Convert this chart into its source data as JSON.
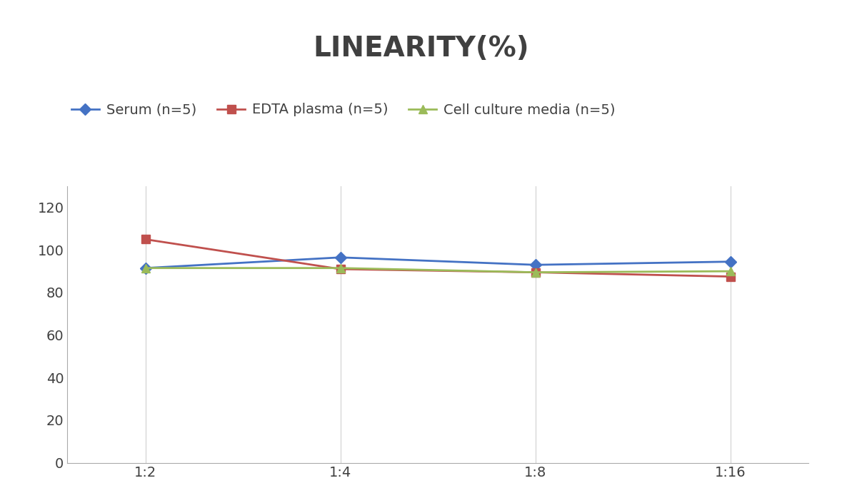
{
  "title": "LINEARITY(%)",
  "title_fontsize": 28,
  "title_fontweight": "bold",
  "title_color": "#404040",
  "x_labels": [
    "1:2",
    "1:4",
    "1:8",
    "1:16"
  ],
  "x_positions": [
    0,
    1,
    2,
    3
  ],
  "series": [
    {
      "label": "Serum (n=5)",
      "values": [
        91.5,
        96.5,
        93.0,
        94.5
      ],
      "color": "#4472C4",
      "marker": "D",
      "markersize": 8,
      "linewidth": 2
    },
    {
      "label": "EDTA plasma (n=5)",
      "values": [
        105.0,
        91.0,
        89.5,
        87.5
      ],
      "color": "#C0504D",
      "marker": "s",
      "markersize": 8,
      "linewidth": 2
    },
    {
      "label": "Cell culture media (n=5)",
      "values": [
        91.5,
        91.5,
        89.5,
        90.0
      ],
      "color": "#9BBB59",
      "marker": "^",
      "markersize": 8,
      "linewidth": 2
    }
  ],
  "ylim": [
    0,
    130
  ],
  "yticks": [
    0,
    20,
    40,
    60,
    80,
    100,
    120
  ],
  "background_color": "#ffffff",
  "grid_color": "#d0d0d0",
  "legend_fontsize": 14,
  "tick_fontsize": 14,
  "spine_color": "#aaaaaa"
}
